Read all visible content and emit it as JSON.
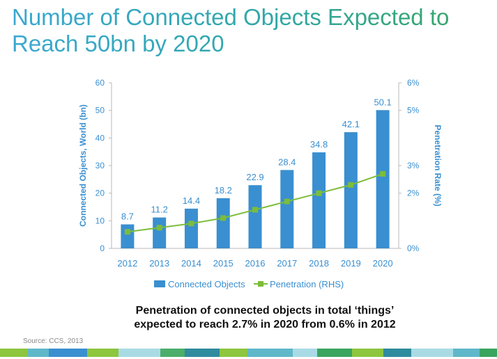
{
  "title": "Number of Connected Objects Expected to Reach 50bn by 2020",
  "subtitle_line1": "Penetration of connected objects in total ‘things’",
  "subtitle_line2": "expected to reach 2.7% in 2020 from 0.6% in 2012",
  "source": "Source: CCS, 2013",
  "colors": {
    "bar": "#3a8fd0",
    "line": "#7cbd3a",
    "axis_text": "#3a8fd0",
    "title_start": "#3aa8d2",
    "title_end": "#3aa55f"
  },
  "stripe_colors": [
    "#8dc63f",
    "#5fb8c9",
    "#3a8fd0",
    "#8dc63f",
    "#a9dbe5",
    "#4cae6a",
    "#2f8b9e",
    "#8dc63f",
    "#5fb8c9",
    "#a9dbe5",
    "#3aa55f",
    "#8dc63f",
    "#2f8b9e",
    "#a9dbe5",
    "#5fb8c9",
    "#3aa55f"
  ],
  "chart_data": {
    "type": "bar",
    "categories": [
      "2012",
      "2013",
      "2014",
      "2015",
      "2016",
      "2017",
      "2018",
      "2019",
      "2020"
    ],
    "series": [
      {
        "name": "Connected Objects",
        "type": "bar",
        "axis": "left",
        "values": [
          8.7,
          11.2,
          14.4,
          18.2,
          22.9,
          28.4,
          34.8,
          42.1,
          50.1
        ],
        "data_labels": [
          "8.7",
          "11.2",
          "14.4",
          "18.2",
          "22.9",
          "28.4",
          "34.8",
          "42.1",
          "50.1"
        ]
      },
      {
        "name": "Penetration (RHS)",
        "type": "line",
        "axis": "right",
        "values": [
          0.6,
          0.75,
          0.9,
          1.1,
          1.4,
          1.7,
          2.0,
          2.3,
          2.7
        ]
      }
    ],
    "ylabel": "Connected Objects, World (bn)",
    "y2label": "Penetration Rate (%)",
    "ylim": [
      0,
      60
    ],
    "yticks": [
      "0",
      "10",
      "20",
      "30",
      "40",
      "50",
      "60"
    ],
    "y2lim": [
      0,
      6
    ],
    "y2ticks": [
      "0%",
      "2%",
      "3%",
      "5%",
      "6%"
    ],
    "y2tick_values": [
      0,
      2,
      3,
      5,
      6
    ],
    "legend": [
      "Connected Objects",
      "Penetration (RHS)"
    ],
    "legend_position": "bottom",
    "grid": false
  }
}
